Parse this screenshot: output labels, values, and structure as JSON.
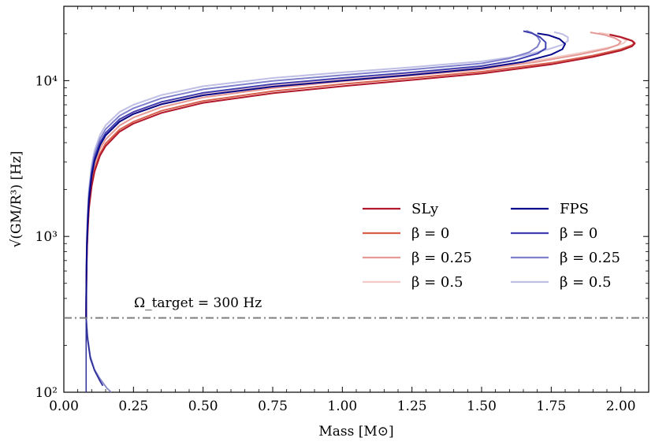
{
  "chart_data": {
    "type": "line",
    "title": "",
    "xlabel": "Mass [M⊙]",
    "ylabel": "√(GM/R³) [Hz]",
    "xlim": [
      0.0,
      2.1
    ],
    "ylim": [
      100,
      30000
    ],
    "yscale": "log",
    "x_ticks": [
      0.0,
      0.25,
      0.5,
      0.75,
      1.0,
      1.25,
      1.5,
      1.75,
      2.0
    ],
    "x_tick_labels": [
      "0.00",
      "0.25",
      "0.50",
      "0.75",
      "1.00",
      "1.25",
      "1.50",
      "1.75",
      "2.00"
    ],
    "y_ticks": [
      100,
      1000,
      10000
    ],
    "y_tick_labels": [
      "10²",
      "10³",
      "10⁴"
    ],
    "reference_line": {
      "y": 300,
      "label": "Ω_target = 300 Hz",
      "color": "#808080"
    },
    "legend_position": "center-right",
    "series": [
      {
        "name": "SLy",
        "eos": "SLy",
        "beta": null,
        "color": "#b2182b",
        "x": [
          0.08,
          0.081,
          0.083,
          0.086,
          0.09,
          0.1,
          0.11,
          0.13,
          0.15,
          0.2,
          0.25,
          0.35,
          0.5,
          0.75,
          1.0,
          1.25,
          1.5,
          1.75,
          1.9,
          2.0,
          2.04,
          2.05,
          2.04,
          2.0,
          1.96
        ],
        "y": [
          300,
          500,
          800,
          1100,
          1500,
          2100,
          2600,
          3300,
          3800,
          4700,
          5300,
          6200,
          7200,
          8300,
          9200,
          10100,
          11100,
          12700,
          14200,
          15600,
          16600,
          17300,
          18000,
          19000,
          19700
        ]
      },
      {
        "name": "β = 0",
        "eos": "SLy",
        "beta": 0,
        "color": "#d6604d",
        "x": [
          0.08,
          0.081,
          0.083,
          0.086,
          0.09,
          0.1,
          0.11,
          0.13,
          0.15,
          0.2,
          0.25,
          0.35,
          0.5,
          0.75,
          1.0,
          1.25,
          1.5,
          1.75,
          1.9,
          2.0,
          2.04,
          2.05,
          2.04,
          2.0,
          1.96
        ],
        "y": [
          300,
          520,
          830,
          1150,
          1560,
          2200,
          2700,
          3400,
          3950,
          4850,
          5450,
          6400,
          7400,
          8550,
          9500,
          10400,
          11400,
          13000,
          14500,
          15900,
          16900,
          17500,
          18100,
          19100,
          19800
        ]
      },
      {
        "name": "β = 0.25",
        "eos": "SLy",
        "beta": 0.25,
        "color": "#e59a95",
        "x": [
          0.08,
          0.081,
          0.083,
          0.086,
          0.09,
          0.1,
          0.11,
          0.13,
          0.15,
          0.2,
          0.25,
          0.35,
          0.5,
          0.75,
          1.0,
          1.25,
          1.5,
          1.7,
          1.85,
          1.95,
          1.99,
          2.0,
          1.98,
          1.94,
          1.89
        ],
        "y": [
          300,
          550,
          880,
          1220,
          1650,
          2350,
          2900,
          3650,
          4200,
          5150,
          5800,
          6750,
          7800,
          8950,
          9900,
          10800,
          11800,
          13200,
          14700,
          16000,
          17000,
          17800,
          18700,
          19700,
          20400
        ]
      },
      {
        "name": "β = 0.5",
        "eos": "SLy",
        "beta": 0.5,
        "color": "#f2cac6",
        "x": [
          0.08,
          0.081,
          0.083,
          0.086,
          0.09,
          0.1,
          0.11,
          0.13,
          0.15,
          0.2,
          0.25,
          0.35,
          0.5,
          0.75,
          1.0,
          1.25,
          1.5,
          1.7,
          1.85,
          1.97,
          2.01,
          2.02,
          2.0,
          1.96,
          1.92
        ],
        "y": [
          300,
          580,
          930,
          1300,
          1760,
          2500,
          3100,
          3900,
          4500,
          5500,
          6150,
          7100,
          8150,
          9300,
          10200,
          11100,
          12100,
          13500,
          15000,
          16500,
          17400,
          18100,
          18900,
          19800,
          20300
        ]
      },
      {
        "name": "FPS",
        "eos": "FPS",
        "beta": null,
        "color": "#08088a",
        "x": [
          0.08,
          0.081,
          0.083,
          0.086,
          0.09,
          0.1,
          0.11,
          0.13,
          0.15,
          0.2,
          0.25,
          0.35,
          0.5,
          0.75,
          1.0,
          1.25,
          1.5,
          1.65,
          1.75,
          1.79,
          1.8,
          1.78,
          1.74,
          1.7
        ],
        "y": [
          300,
          540,
          880,
          1250,
          1700,
          2450,
          3050,
          3850,
          4450,
          5450,
          6100,
          7050,
          8050,
          9150,
          10000,
          10900,
          12000,
          13200,
          14700,
          15900,
          17200,
          18500,
          19600,
          20100
        ]
      },
      {
        "name": "β = 0",
        "eos": "FPS",
        "beta": 0,
        "color": "#4040b0",
        "x": [
          0.08,
          0.081,
          0.083,
          0.086,
          0.09,
          0.1,
          0.11,
          0.13,
          0.15,
          0.2,
          0.25,
          0.35,
          0.5,
          0.75,
          1.0,
          1.25,
          1.5,
          1.62,
          1.7,
          1.73,
          1.73,
          1.71,
          1.68,
          1.65
        ],
        "y": [
          300,
          560,
          910,
          1300,
          1770,
          2550,
          3170,
          4000,
          4620,
          5650,
          6300,
          7300,
          8350,
          9500,
          10400,
          11300,
          12400,
          13500,
          14900,
          16100,
          17600,
          19000,
          20200,
          20800
        ]
      },
      {
        "name": "β = 0.25",
        "eos": "FPS",
        "beta": 0.25,
        "color": "#7f7fcc",
        "x": [
          0.08,
          0.081,
          0.083,
          0.086,
          0.09,
          0.1,
          0.11,
          0.13,
          0.15,
          0.2,
          0.25,
          0.35,
          0.5,
          0.75,
          1.0,
          1.25,
          1.5,
          1.6,
          1.67,
          1.7,
          1.71,
          1.7,
          1.68,
          1.66
        ],
        "y": [
          300,
          600,
          970,
          1380,
          1880,
          2700,
          3350,
          4230,
          4880,
          5950,
          6650,
          7700,
          8800,
          9950,
          10850,
          11800,
          12900,
          13900,
          15200,
          16500,
          17900,
          19200,
          20300,
          20900
        ]
      },
      {
        "name": "β = 0.5",
        "eos": "FPS",
        "beta": 0.5,
        "color": "#bfbfe6",
        "x": [
          0.08,
          0.081,
          0.083,
          0.086,
          0.09,
          0.1,
          0.11,
          0.13,
          0.15,
          0.2,
          0.25,
          0.35,
          0.5,
          0.75,
          1.0,
          1.25,
          1.5,
          1.65,
          1.74,
          1.79,
          1.81,
          1.81,
          1.79,
          1.76
        ],
        "y": [
          300,
          640,
          1040,
          1470,
          2000,
          2870,
          3560,
          4490,
          5170,
          6300,
          7000,
          8080,
          9200,
          10400,
          11300,
          12200,
          13300,
          14500,
          15900,
          17000,
          18000,
          19000,
          19900,
          20500
        ]
      }
    ],
    "low_tail": [
      {
        "x": [
          0.08,
          0.085,
          0.095,
          0.11,
          0.13,
          0.155,
          0.17
        ],
        "y": [
          300,
          230,
          170,
          140,
          122,
          106,
          100
        ],
        "color": "#8585cc"
      },
      {
        "x": [
          0.08,
          0.085,
          0.095,
          0.11,
          0.13,
          0.14
        ],
        "y": [
          300,
          220,
          165,
          138,
          118,
          110
        ],
        "color": "#30309a"
      }
    ],
    "vertical_line": {
      "x": 0.08,
      "y_from": 100,
      "y_to": 300,
      "color": "#30309a"
    }
  }
}
